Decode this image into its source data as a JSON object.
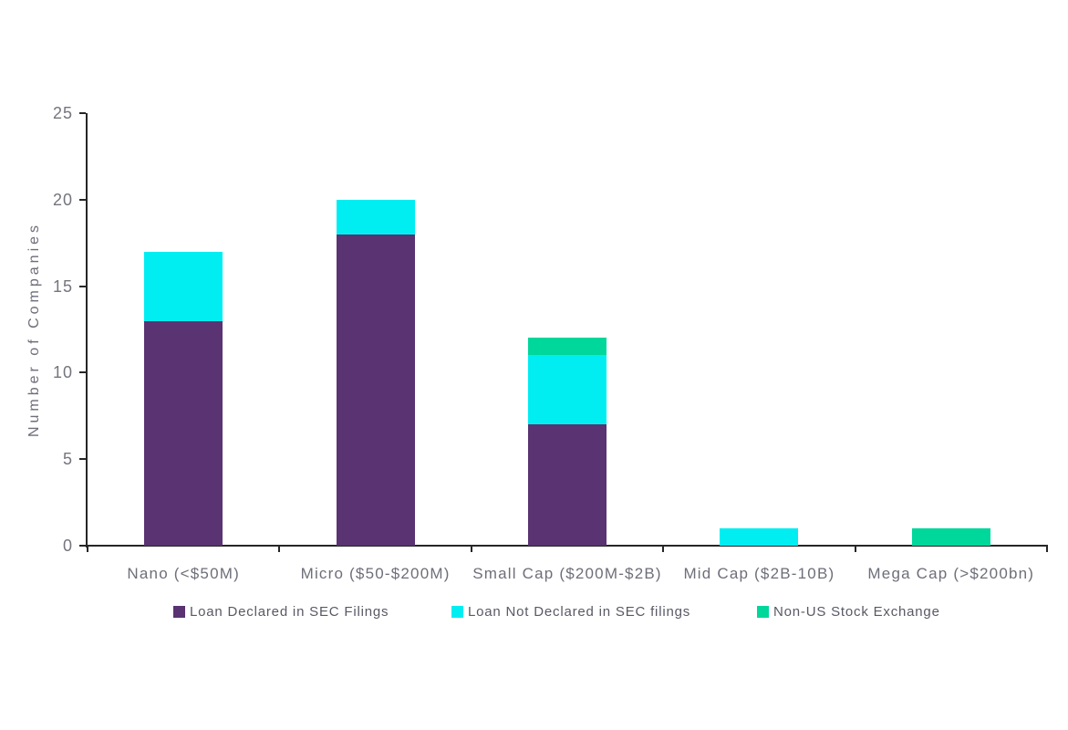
{
  "chart_data": {
    "type": "bar",
    "stacked": true,
    "title": "",
    "xlabel": "",
    "ylabel": "Number of Companies",
    "ylim": [
      0,
      25
    ],
    "yticks": [
      0,
      5,
      10,
      15,
      20,
      25
    ],
    "grid": false,
    "legend_position": "bottom",
    "categories": [
      "Nano (<$50M)",
      "Micro ($50-$200M)",
      "Small Cap ($200M-$2B)",
      "Mid Cap ($2B-10B)",
      "Mega Cap (>$200bn)"
    ],
    "series": [
      {
        "name": "Loan Declared in SEC Filings",
        "color": "#593372",
        "values": [
          13,
          18,
          7,
          0,
          0
        ]
      },
      {
        "name": "Loan Not Declared in SEC filings",
        "color": "#00EEF2",
        "values": [
          4,
          2,
          4,
          1,
          0
        ]
      },
      {
        "name": "Non-US Stock Exchange",
        "color": "#00D79B",
        "values": [
          0,
          0,
          1,
          0,
          1
        ]
      }
    ],
    "totals_by_category": [
      17,
      20,
      12,
      1,
      1
    ]
  },
  "colors": {
    "axis": "#262626",
    "tick_label": "#74747e",
    "category_label": "#6e6e7a",
    "legend_text": "#595965",
    "background": "#ffffff"
  }
}
